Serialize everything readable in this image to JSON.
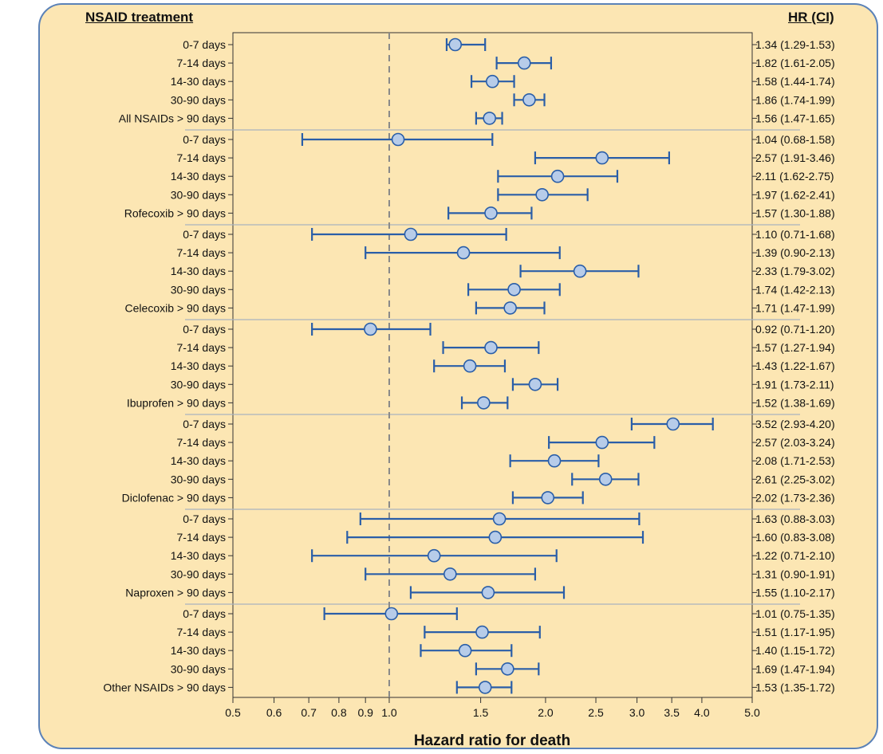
{
  "header": {
    "left": "NSAID treatment",
    "right": "HR (CI)"
  },
  "colors": {
    "panel_bg": "#fce6b3",
    "panel_border": "#5b82b8",
    "ci_line": "#2a5ea8",
    "marker_fill": "#b7cce9",
    "ref_line": "#888888",
    "separator": "#a9b3bf"
  },
  "chart_data": {
    "type": "forest",
    "title": "",
    "xlabel": "Hazard ratio for death",
    "xscale": "log",
    "xlim": [
      0.5,
      5.0
    ],
    "xticks": [
      {
        "value": 0.5,
        "label": "0.5"
      },
      {
        "value": 0.6,
        "label": "0.6"
      },
      {
        "value": 0.7,
        "label": "0.7"
      },
      {
        "value": 0.8,
        "label": "0.8"
      },
      {
        "value": 0.9,
        "label": "0.9"
      },
      {
        "value": 1.0,
        "label": "1.0"
      },
      {
        "value": 1.5,
        "label": "1.5"
      },
      {
        "value": 2.0,
        "label": "2.0"
      },
      {
        "value": 2.5,
        "label": "2.5"
      },
      {
        "value": 3.0,
        "label": "3.0"
      },
      {
        "value": 3.5,
        "label": "3.5"
      },
      {
        "value": 4.0,
        "label": "4.0"
      },
      {
        "value": 5.0,
        "label": "5.0"
      }
    ],
    "reference_line": 1.0,
    "groups": [
      {
        "rows": [
          {
            "label": "0-7 days",
            "hr": 1.34,
            "lo": 1.29,
            "hi": 1.53,
            "text": "1.34 (1.29-1.53)"
          },
          {
            "label": "7-14 days",
            "hr": 1.82,
            "lo": 1.61,
            "hi": 2.05,
            "text": "1.82 (1.61-2.05)"
          },
          {
            "label": "14-30 days",
            "hr": 1.58,
            "lo": 1.44,
            "hi": 1.74,
            "text": "1.58 (1.44-1.74)"
          },
          {
            "label": "30-90 days",
            "hr": 1.86,
            "lo": 1.74,
            "hi": 1.99,
            "text": "1.86 (1.74-1.99)"
          },
          {
            "label": "All NSAIDs > 90 days",
            "hr": 1.56,
            "lo": 1.47,
            "hi": 1.65,
            "text": "1.56 (1.47-1.65)"
          }
        ]
      },
      {
        "rows": [
          {
            "label": "0-7 days",
            "hr": 1.04,
            "lo": 0.68,
            "hi": 1.58,
            "text": "1.04 (0.68-1.58)"
          },
          {
            "label": "7-14 days",
            "hr": 2.57,
            "lo": 1.91,
            "hi": 3.46,
            "text": "2.57 (1.91-3.46)"
          },
          {
            "label": "14-30 days",
            "hr": 2.11,
            "lo": 1.62,
            "hi": 2.75,
            "text": "2.11 (1.62-2.75)"
          },
          {
            "label": "30-90 days",
            "hr": 1.97,
            "lo": 1.62,
            "hi": 2.41,
            "text": "1.97 (1.62-2.41)"
          },
          {
            "label": "Rofecoxib > 90 days",
            "hr": 1.57,
            "lo": 1.3,
            "hi": 1.88,
            "text": "1.57 (1.30-1.88)"
          }
        ]
      },
      {
        "rows": [
          {
            "label": "0-7 days",
            "hr": 1.1,
            "lo": 0.71,
            "hi": 1.68,
            "text": "1.10 (0.71-1.68)"
          },
          {
            "label": "7-14 days",
            "hr": 1.39,
            "lo": 0.9,
            "hi": 2.13,
            "text": "1.39 (0.90-2.13)"
          },
          {
            "label": "14-30 days",
            "hr": 2.33,
            "lo": 1.79,
            "hi": 3.02,
            "text": "2.33 (1.79-3.02)"
          },
          {
            "label": "30-90 days",
            "hr": 1.74,
            "lo": 1.42,
            "hi": 2.13,
            "text": "1.74 (1.42-2.13)"
          },
          {
            "label": "Celecoxib > 90 days",
            "hr": 1.71,
            "lo": 1.47,
            "hi": 1.99,
            "text": "1.71 (1.47-1.99)"
          }
        ]
      },
      {
        "rows": [
          {
            "label": "0-7 days",
            "hr": 0.92,
            "lo": 0.71,
            "hi": 1.2,
            "text": "0.92 (0.71-1.20)"
          },
          {
            "label": "7-14 days",
            "hr": 1.57,
            "lo": 1.27,
            "hi": 1.94,
            "text": "1.57 (1.27-1.94)"
          },
          {
            "label": "14-30 days",
            "hr": 1.43,
            "lo": 1.22,
            "hi": 1.67,
            "text": "1.43 (1.22-1.67)"
          },
          {
            "label": "30-90 days",
            "hr": 1.91,
            "lo": 1.73,
            "hi": 2.11,
            "text": "1.91 (1.73-2.11)"
          },
          {
            "label": "Ibuprofen > 90 days",
            "hr": 1.52,
            "lo": 1.38,
            "hi": 1.69,
            "text": "1.52 (1.38-1.69)"
          }
        ]
      },
      {
        "rows": [
          {
            "label": "0-7 days",
            "hr": 3.52,
            "lo": 2.93,
            "hi": 4.2,
            "text": "3.52 (2.93-4.20)"
          },
          {
            "label": "7-14 days",
            "hr": 2.57,
            "lo": 2.03,
            "hi": 3.24,
            "text": "2.57 (2.03-3.24)"
          },
          {
            "label": "14-30 days",
            "hr": 2.08,
            "lo": 1.71,
            "hi": 2.53,
            "text": "2.08 (1.71-2.53)"
          },
          {
            "label": "30-90 days",
            "hr": 2.61,
            "lo": 2.25,
            "hi": 3.02,
            "text": "2.61 (2.25-3.02)"
          },
          {
            "label": "Diclofenac > 90 days",
            "hr": 2.02,
            "lo": 1.73,
            "hi": 2.36,
            "text": "2.02 (1.73-2.36)"
          }
        ]
      },
      {
        "rows": [
          {
            "label": "0-7 days",
            "hr": 1.63,
            "lo": 0.88,
            "hi": 3.03,
            "text": "1.63 (0.88-3.03)"
          },
          {
            "label": "7-14 days",
            "hr": 1.6,
            "lo": 0.83,
            "hi": 3.08,
            "text": "1.60 (0.83-3.08)"
          },
          {
            "label": "14-30 days",
            "hr": 1.22,
            "lo": 0.71,
            "hi": 2.1,
            "text": "1.22 (0.71-2.10)"
          },
          {
            "label": "30-90 days",
            "hr": 1.31,
            "lo": 0.9,
            "hi": 1.91,
            "text": "1.31 (0.90-1.91)"
          },
          {
            "label": "Naproxen > 90 days",
            "hr": 1.55,
            "lo": 1.1,
            "hi": 2.17,
            "text": "1.55 (1.10-2.17)"
          }
        ]
      },
      {
        "rows": [
          {
            "label": "0-7 days",
            "hr": 1.01,
            "lo": 0.75,
            "hi": 1.35,
            "text": "1.01 (0.75-1.35)"
          },
          {
            "label": "7-14 days",
            "hr": 1.51,
            "lo": 1.17,
            "hi": 1.95,
            "text": "1.51 (1.17-1.95)"
          },
          {
            "label": "14-30 days",
            "hr": 1.4,
            "lo": 1.15,
            "hi": 1.72,
            "text": "1.40 (1.15-1.72)"
          },
          {
            "label": "30-90 days",
            "hr": 1.69,
            "lo": 1.47,
            "hi": 1.94,
            "text": "1.69 (1.47-1.94)"
          },
          {
            "label": "Other NSAIDs > 90 days",
            "hr": 1.53,
            "lo": 1.35,
            "hi": 1.72,
            "text": "1.53 (1.35-1.72)"
          }
        ]
      }
    ]
  }
}
